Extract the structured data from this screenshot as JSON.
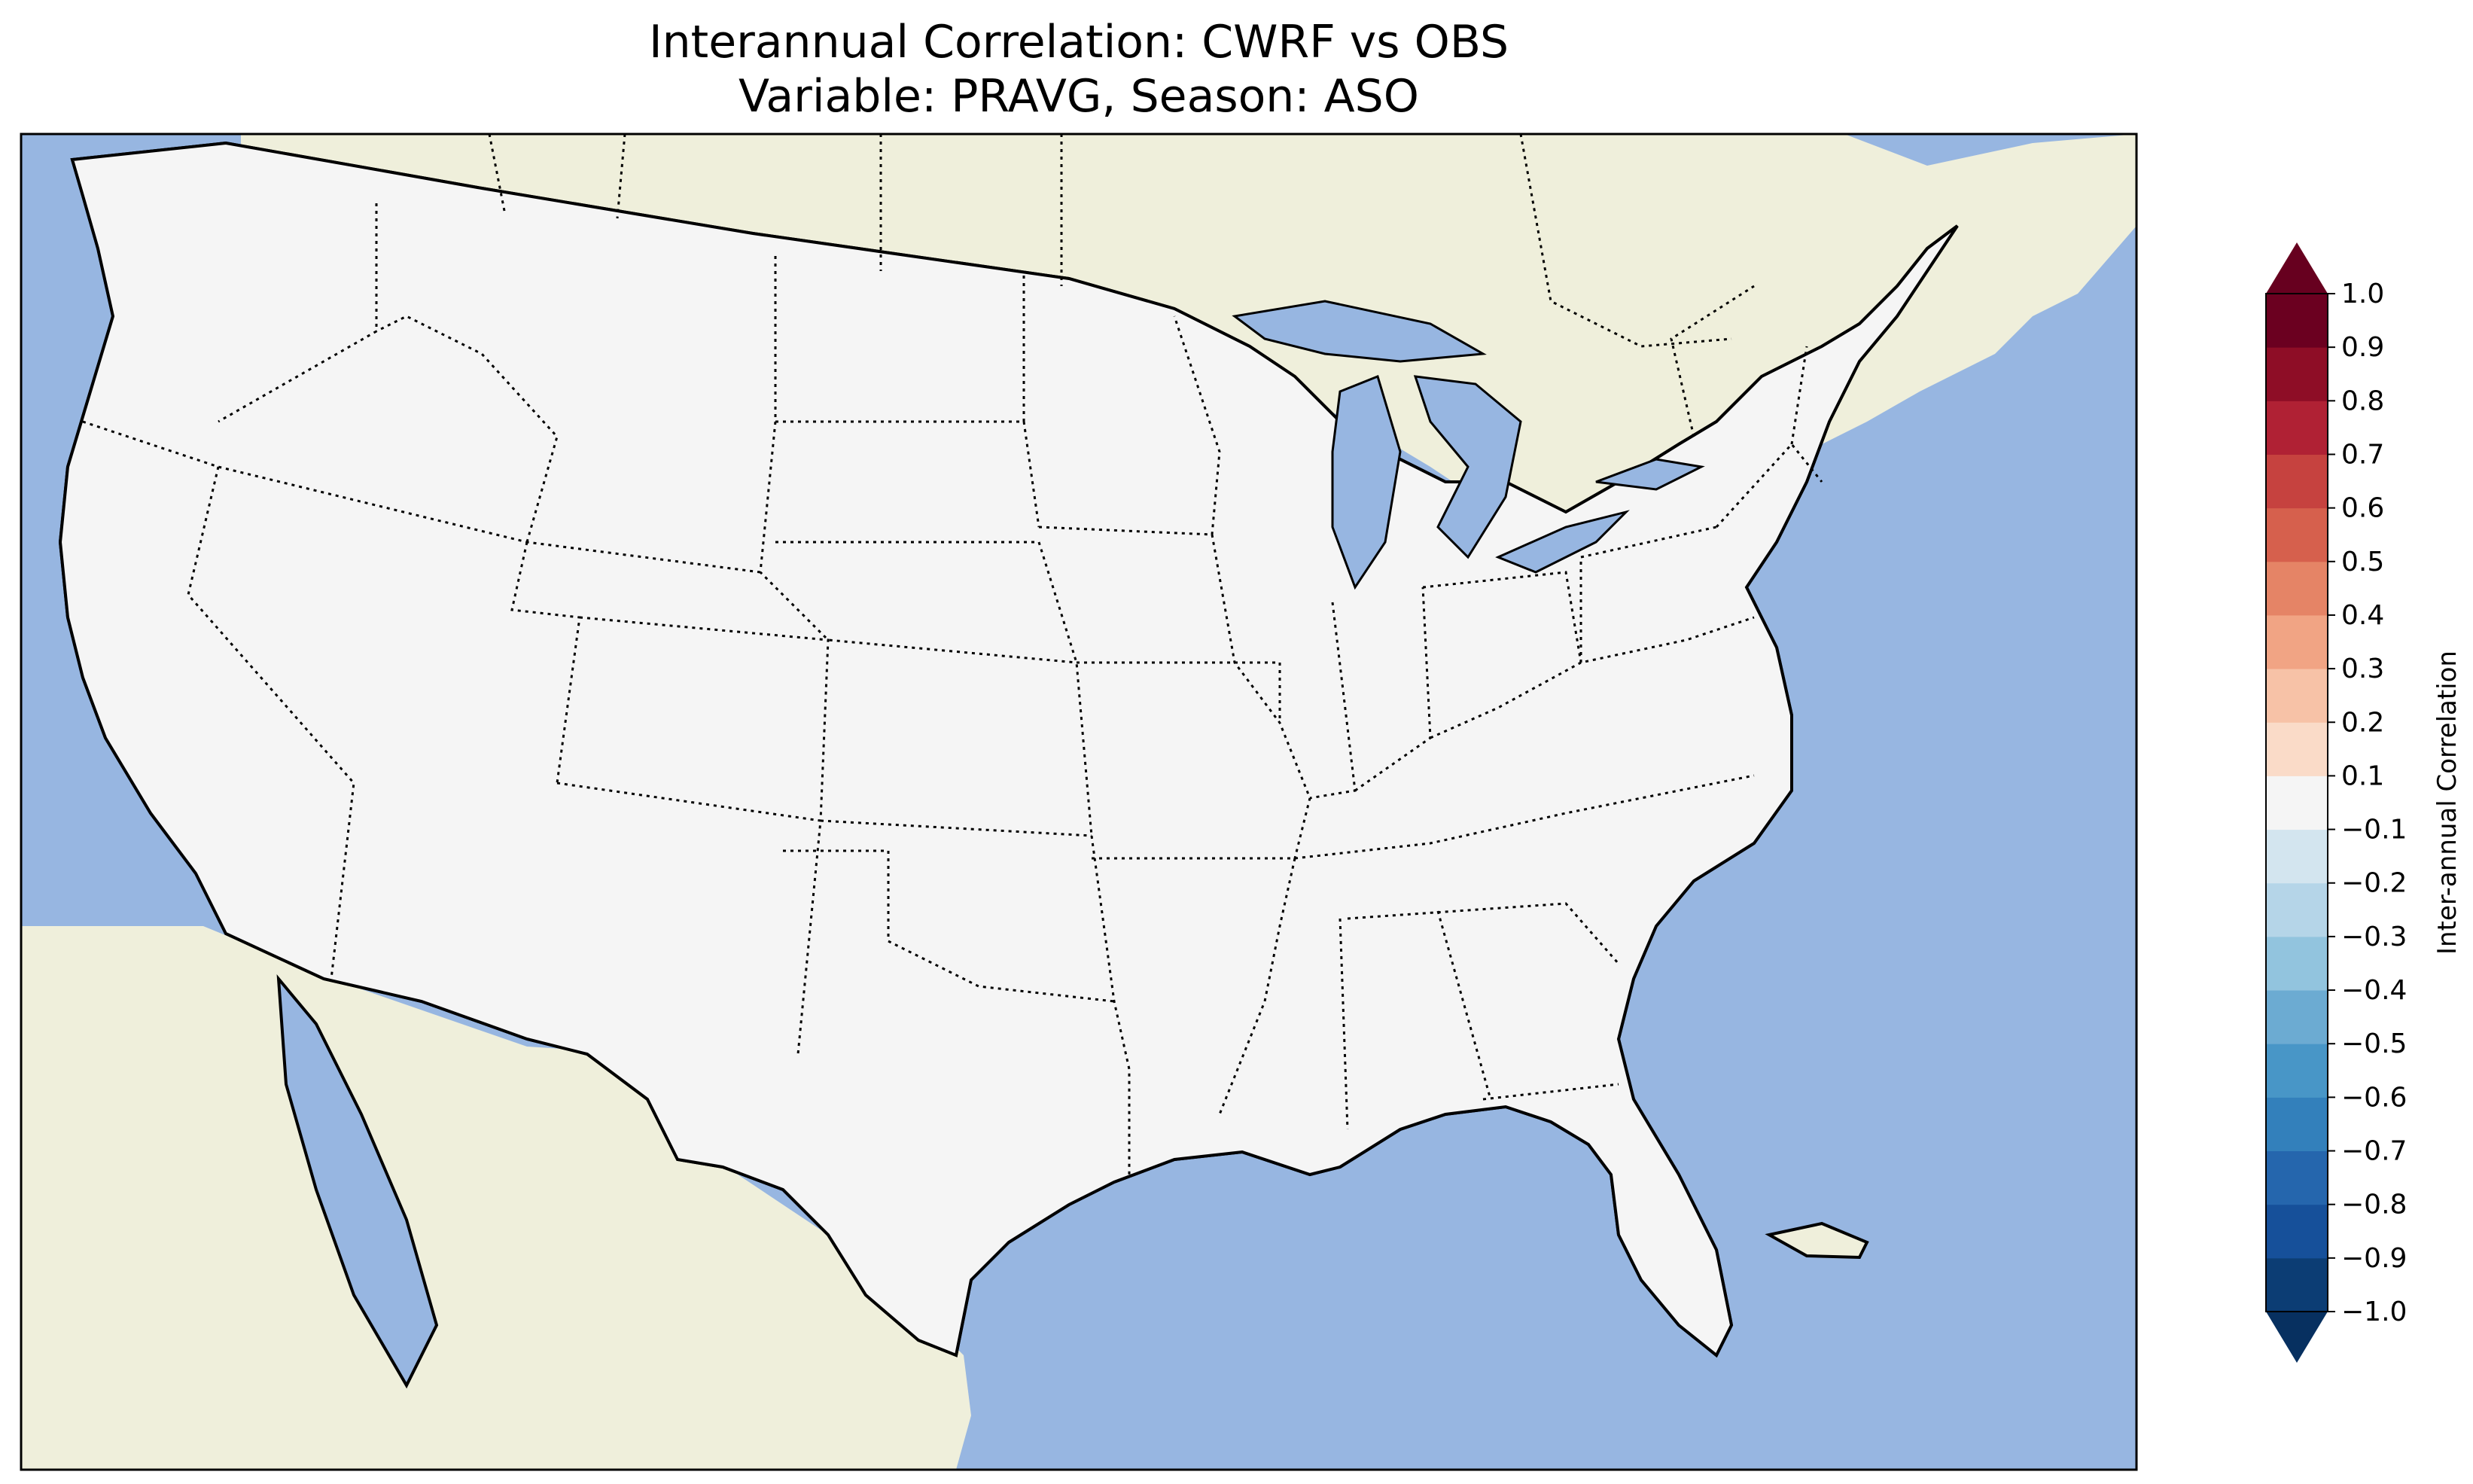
{
  "figure": {
    "title_line1": "Interannual Correlation: CWRF vs OBS",
    "title_line2": "Variable: PRAVG, Season: ASO"
  },
  "map": {
    "type": "filled-contour map",
    "region": "Contiguous United States",
    "ocean_color": "#97b6e1",
    "land_color": "#efefdb",
    "coastline_color": "#000000",
    "state_boundary_style": "dotted"
  },
  "colorbar": {
    "label": "Inter-annual Correlation",
    "orientation": "vertical",
    "colormap": "RdBu_r",
    "extend": "both",
    "levels": [
      -1.0,
      -0.9,
      -0.8,
      -0.7,
      -0.6,
      -0.5,
      -0.4,
      -0.3,
      -0.2,
      -0.1,
      0.1,
      0.2,
      0.3,
      0.4,
      0.5,
      0.6,
      0.7,
      0.8,
      0.9,
      1.0
    ],
    "tick_labels": [
      "1.0",
      "0.9",
      "0.8",
      "0.7",
      "0.6",
      "0.5",
      "0.4",
      "0.3",
      "0.2",
      "0.1",
      "−0.1",
      "−0.2",
      "−0.3",
      "−0.4",
      "−0.5",
      "−0.6",
      "−0.7",
      "−0.8",
      "−0.9",
      "−1.0"
    ],
    "colors_low_to_high": [
      "#0c3d74",
      "#16509a",
      "#2566ad",
      "#3380bb",
      "#4896c7",
      "#6cabd2",
      "#92c4de",
      "#b5d5e8",
      "#d3e5ef",
      "#f5f5f5",
      "#fadbc8",
      "#f7c2a7",
      "#f1a484",
      "#e58466",
      "#d6604d",
      "#c6423f",
      "#b02134",
      "#8e0d26",
      "#6b0020"
    ],
    "extend_low_color": "#073060",
    "extend_high_color": "#67001f"
  }
}
